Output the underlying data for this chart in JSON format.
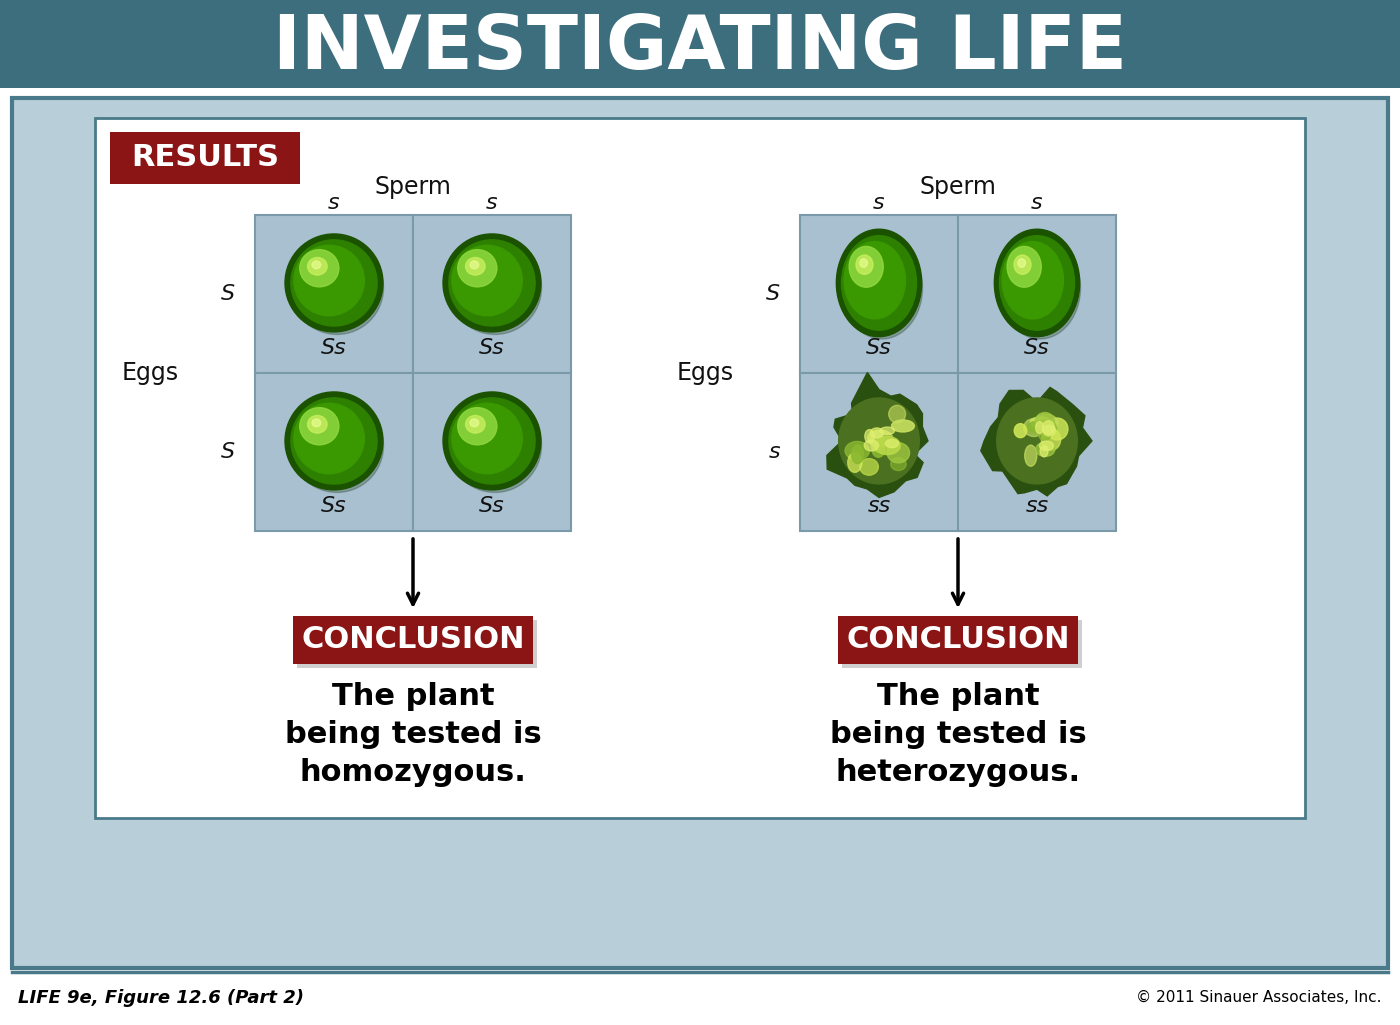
{
  "title": "INVESTIGATING LIFE",
  "title_bg": "#3d6e7e",
  "title_color": "#ffffff",
  "outer_bg": "#b8ced9",
  "inner_bg": "#ffffff",
  "inner_border": "#4a7a8a",
  "results_bg": "#8b1515",
  "results_text": "RESULTS",
  "results_color": "#ffffff",
  "conclusion_bg": "#8b1515",
  "conclusion_color": "#ffffff",
  "cell_bg": "#a8c0d0",
  "left_sperm_label": "Sperm",
  "left_sperm_s1": "s",
  "left_sperm_s2": "s",
  "left_egg_S1": "S",
  "left_egg_S2": "S",
  "left_eggs_label": "Eggs",
  "left_cells": [
    "Ss",
    "Ss",
    "Ss",
    "Ss"
  ],
  "left_conclusion": "CONCLUSION",
  "left_conclusion_text": "The plant\nbeing tested is\nhomozygous.",
  "right_sperm_label": "Sperm",
  "right_sperm_s1": "s",
  "right_sperm_s2": "s",
  "right_egg_S1": "S",
  "right_egg_s2": "s",
  "right_eggs_label": "Eggs",
  "right_cells": [
    "Ss",
    "Ss",
    "ss",
    "ss"
  ],
  "right_conclusion": "CONCLUSION",
  "right_conclusion_text": "The plant\nbeing tested is\nheterozygous.",
  "footer_left": "LIFE 9e, Figure 12.6 (Part 2)",
  "footer_right": "© 2011 Sinauer Associates, Inc."
}
